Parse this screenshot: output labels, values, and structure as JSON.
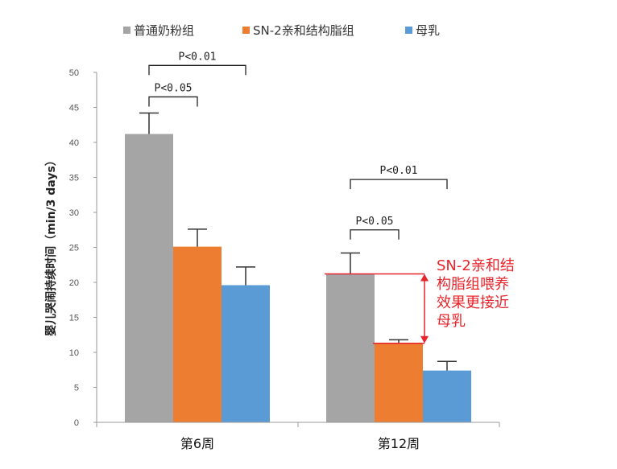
{
  "chart_data": {
    "type": "bar",
    "title": "",
    "ylabel": "婴儿哭闹持续时间（min/3 days）",
    "xlabel": "",
    "ylim": [
      0,
      50
    ],
    "yticks": [
      0,
      5,
      10,
      15,
      20,
      25,
      30,
      35,
      40,
      45,
      50
    ],
    "categories": [
      "第6周",
      "第12周"
    ],
    "series": [
      {
        "name": "普通奶粉组",
        "color": "#a5a5a5",
        "values": [
          41.2,
          21.2
        ],
        "errors": [
          3.0,
          3.0
        ]
      },
      {
        "name": "SN-2亲和结构脂组",
        "color": "#ed7d31",
        "values": [
          25.1,
          11.3
        ],
        "errors": [
          2.5,
          0.5
        ]
      },
      {
        "name": "母乳",
        "color": "#5b9bd5",
        "values": [
          19.6,
          7.4
        ],
        "errors": [
          2.6,
          1.3
        ]
      }
    ],
    "significance": [
      {
        "category": 0,
        "from": 0,
        "to": 1,
        "label": "P<0.05",
        "y": 46.5
      },
      {
        "category": 0,
        "from": 0,
        "to": 2,
        "label": "P<0.01",
        "y": 51.0
      },
      {
        "category": 1,
        "from": 0,
        "to": 1,
        "label": "P<0.05",
        "y": 27.5
      },
      {
        "category": 1,
        "from": 0,
        "to": 2,
        "label": "P<0.01",
        "y": 34.7
      }
    ],
    "annotation": {
      "lines": [
        "SN-2亲和结",
        "构脂组喂养",
        "效果更接近",
        "母乳"
      ],
      "color": "#e8232a"
    },
    "legend_position": "top"
  }
}
